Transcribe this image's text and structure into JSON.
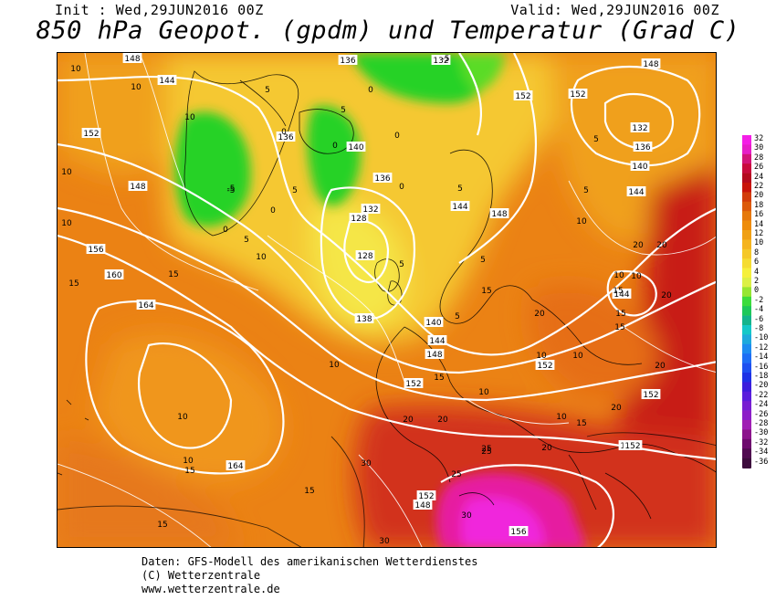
{
  "header": {
    "init": "Init : Wed,29JUN2016 00Z",
    "valid": "Valid: Wed,29JUN2016 00Z",
    "title": "850 hPa Geopot. (gpdm) und Temperatur (Grad C)"
  },
  "colorbar": {
    "labels": [
      "32",
      "30",
      "28",
      "26",
      "24",
      "22",
      "20",
      "18",
      "16",
      "14",
      "12",
      "10",
      "8",
      "6",
      "4",
      "2",
      "0",
      "-2",
      "-4",
      "-6",
      "-8",
      "-10",
      "-12",
      "-14",
      "-16",
      "-18",
      "-20",
      "-22",
      "-24",
      "-26",
      "-28",
      "-30",
      "-32",
      "-34",
      "-36"
    ],
    "colors": [
      "#f41ee6",
      "#e61ec8",
      "#d21478",
      "#c80a3c",
      "#b40a1e",
      "#c8140a",
      "#d23c0a",
      "#dc5a0a",
      "#e6780a",
      "#ee8c0a",
      "#f0a014",
      "#f5b41e",
      "#f5c828",
      "#f5dc32",
      "#f5f03c",
      "#dcf046",
      "#96e632",
      "#3cdc3c",
      "#1ec85a",
      "#14b48c",
      "#14c8c8",
      "#1eaadc",
      "#1e8cf0",
      "#1e6ef5",
      "#1e50f0",
      "#1e32e6",
      "#3c1edc",
      "#5a1edc",
      "#781ed2",
      "#8c1ec8",
      "#a01eb4",
      "#8c148c",
      "#6e0a6e",
      "#500a50",
      "#3c0a3c"
    ]
  },
  "map": {
    "geopotential_labels": [
      "148",
      "144",
      "136",
      "132",
      "132",
      "136",
      "140",
      "144",
      "152",
      "148",
      "140",
      "136",
      "132",
      "128",
      "128",
      "136",
      "138",
      "140",
      "144",
      "148",
      "152",
      "156",
      "160",
      "164",
      "164",
      "152",
      "148",
      "148",
      "144",
      "152",
      "152",
      "156",
      "152",
      "152",
      "152",
      "148",
      "144",
      "152"
    ],
    "temperature_labels": [
      "10",
      "10",
      "10",
      "10",
      "5",
      "5",
      "0",
      "0",
      "-5",
      "0",
      "5",
      "0",
      "5",
      "-5",
      "0",
      "0",
      "5",
      "5",
      "10",
      "10",
      "15",
      "15",
      "15",
      "15",
      "10",
      "10",
      "15",
      "15",
      "10",
      "10",
      "20",
      "20",
      "20",
      "20",
      "25",
      "25",
      "30",
      "30",
      "30",
      "20",
      "20",
      "15",
      "10",
      "10",
      "10",
      "10",
      "15",
      "20",
      "20",
      "25",
      "15",
      "15",
      "20",
      "5",
      "5",
      "5",
      "0",
      "5",
      "10",
      "15",
      "-5",
      "10"
    ]
  },
  "footer": {
    "line1": "Daten: GFS-Modell des amerikanischen Wetterdienstes",
    "line2": "(C) Wetterzentrale",
    "line3": "www.wetterzentrale.de"
  }
}
